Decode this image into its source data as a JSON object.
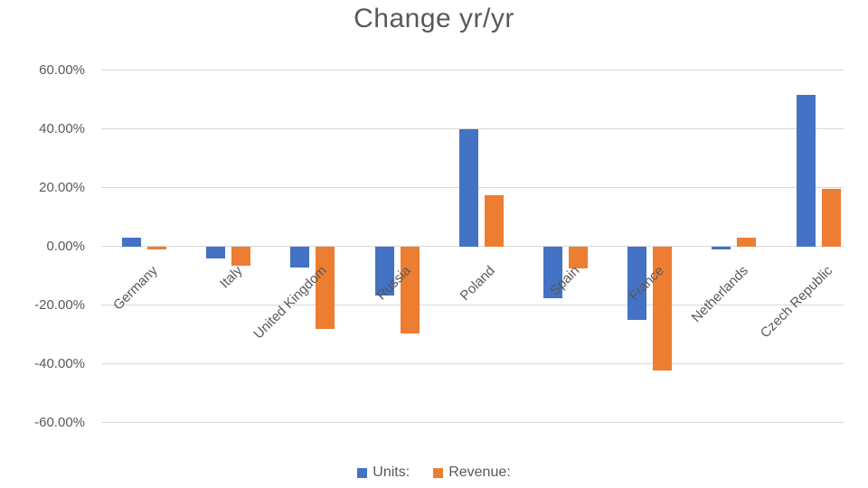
{
  "chart_data": {
    "type": "bar",
    "title": "Change yr/yr",
    "categories": [
      "Germany",
      "Italy",
      "United Kingdom",
      "Russia",
      "Poland",
      "Spain",
      "France",
      "Netherlands",
      "Czech Republic"
    ],
    "series": [
      {
        "name": "Units:",
        "color": "#4472C4",
        "values": [
          3,
          -4,
          -7,
          -16.5,
          40,
          -17.5,
          -25,
          -1,
          51.5
        ]
      },
      {
        "name": "Revenue:",
        "color": "#ED7D31",
        "values": [
          -1,
          -6.5,
          -28,
          -29.5,
          17.5,
          -7.5,
          -42,
          3,
          19.5
        ]
      }
    ],
    "ylim": [
      -60,
      60
    ],
    "yticks": [
      {
        "value": 60,
        "label": "60.00%"
      },
      {
        "value": 40,
        "label": "40.00%"
      },
      {
        "value": 20,
        "label": "20.00%"
      },
      {
        "value": 0,
        "label": "0.00%"
      },
      {
        "value": -20,
        "label": "-20.00%"
      },
      {
        "value": -40,
        "label": "-40.00%"
      },
      {
        "value": -60,
        "label": "-60.00%"
      }
    ],
    "grid": true,
    "legend_position": "bottom",
    "colors": {
      "gridline": "#d9d9d9",
      "text": "#595959",
      "background": "#ffffff"
    }
  }
}
